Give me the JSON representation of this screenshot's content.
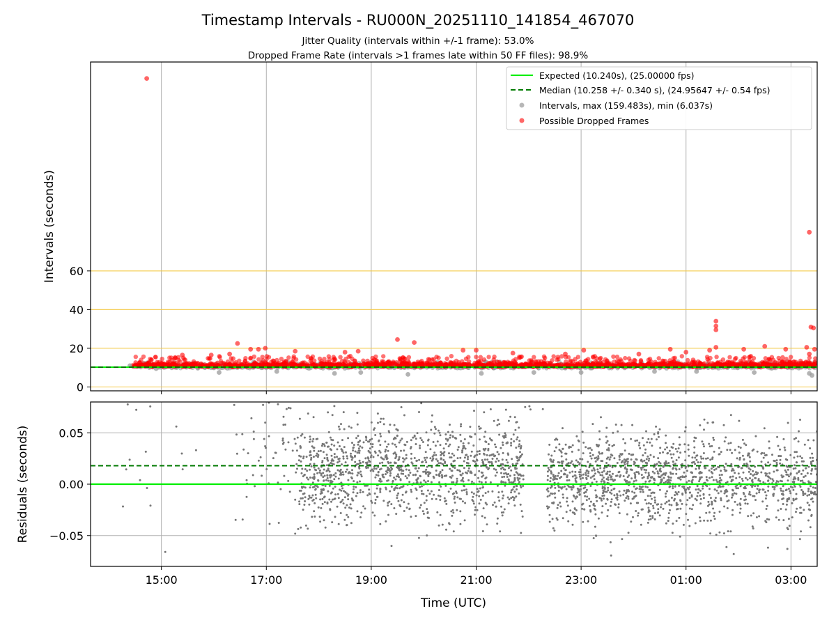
{
  "chart_data": [
    {
      "panel": "top",
      "type": "scatter",
      "title": "Timestamp Intervals - RU000N_20251110_141854_467070",
      "subtitle_1": "Jitter Quality (intervals within +/-1 frame): 53.0%",
      "subtitle_2": "Dropped Frame Rate (intervals >1 frames late within 50 FF files): 98.9%",
      "ylabel": "Intervals (seconds)",
      "ylim": [
        -2,
        168
      ],
      "yticks": [
        0,
        20,
        40,
        60
      ],
      "ytick_labels": [
        "0",
        "20",
        "40",
        "60"
      ],
      "reference_lines": [
        0,
        20,
        40,
        60
      ],
      "xlim_hours": [
        13.65,
        27.5
      ],
      "expected_interval": 10.24,
      "median_interval": 10.258,
      "legend_position": "upper right",
      "legend": [
        "Expected (10.240s), (25.00000 fps)",
        "Median (10.258 +/- 0.340 s), (24.95647 +/- 0.54 fps)",
        "Intervals, max (159.483s), min (6.037s)",
        "Possible Dropped Frames"
      ],
      "series": [
        {
          "name": "Possible Dropped Frames (notable)",
          "color": "#ff0000",
          "points": [
            {
              "t": 14.72,
              "y": 159.5
            },
            {
              "t": 27.35,
              "y": 80.0
            },
            {
              "t": 25.57,
              "y": 34.0
            },
            {
              "t": 25.57,
              "y": 31.5
            },
            {
              "t": 25.57,
              "y": 29.5
            },
            {
              "t": 25.57,
              "y": 20.5
            },
            {
              "t": 27.38,
              "y": 31.0
            },
            {
              "t": 27.43,
              "y": 30.5
            },
            {
              "t": 16.45,
              "y": 22.5
            },
            {
              "t": 19.5,
              "y": 24.5
            },
            {
              "t": 19.82,
              "y": 23.0
            },
            {
              "t": 16.7,
              "y": 19.5
            },
            {
              "t": 16.85,
              "y": 19.5
            },
            {
              "t": 16.98,
              "y": 20.0
            },
            {
              "t": 17.55,
              "y": 18.5
            },
            {
              "t": 18.5,
              "y": 18.0
            },
            {
              "t": 18.75,
              "y": 18.5
            },
            {
              "t": 20.75,
              "y": 19.0
            },
            {
              "t": 21.0,
              "y": 19.0
            },
            {
              "t": 23.05,
              "y": 19.0
            },
            {
              "t": 24.7,
              "y": 19.5
            },
            {
              "t": 25.45,
              "y": 19.0
            },
            {
              "t": 26.1,
              "y": 19.5
            },
            {
              "t": 26.5,
              "y": 21.0
            },
            {
              "t": 26.9,
              "y": 19.5
            },
            {
              "t": 27.3,
              "y": 20.5
            },
            {
              "t": 27.45,
              "y": 19.5
            },
            {
              "t": 27.35,
              "y": 17.0
            },
            {
              "t": 16.3,
              "y": 17.0
            },
            {
              "t": 15.4,
              "y": 16.5
            },
            {
              "t": 15.95,
              "y": 16.5
            },
            {
              "t": 21.7,
              "y": 17.5
            },
            {
              "t": 22.7,
              "y": 17.0
            },
            {
              "t": 24.1,
              "y": 17.0
            },
            {
              "t": 25.0,
              "y": 18.0
            }
          ]
        },
        {
          "name": "Intervals (notable low)",
          "color": "#999999",
          "points": [
            {
              "t": 14.4,
              "y": 11.0
            },
            {
              "t": 14.9,
              "y": 9.5
            },
            {
              "t": 16.1,
              "y": 7.5
            },
            {
              "t": 17.2,
              "y": 8.0
            },
            {
              "t": 18.3,
              "y": 7.0
            },
            {
              "t": 18.8,
              "y": 7.5
            },
            {
              "t": 19.7,
              "y": 6.5
            },
            {
              "t": 21.1,
              "y": 7.0
            },
            {
              "t": 22.1,
              "y": 7.5
            },
            {
              "t": 23.0,
              "y": 7.5
            },
            {
              "t": 24.4,
              "y": 8.0
            },
            {
              "t": 25.2,
              "y": 8.0
            },
            {
              "t": 26.3,
              "y": 7.5
            },
            {
              "t": 27.35,
              "y": 7.0
            },
            {
              "t": 27.4,
              "y": 6.0
            }
          ]
        }
      ],
      "bulk_band": "dense red and gray points between 14.5h and 27.5h at about 9-14 s"
    },
    {
      "panel": "bottom",
      "type": "scatter",
      "xlabel": "Time (UTC)",
      "ylabel": "Residuals (seconds)",
      "ylim": [
        -0.08,
        0.08
      ],
      "yticks": [
        -0.05,
        0.0,
        0.05
      ],
      "ytick_labels": [
        "−0.05",
        "0.00",
        "0.05"
      ],
      "xlim_hours": [
        13.65,
        27.5
      ],
      "xticks_hours": [
        15,
        17,
        19,
        21,
        23,
        25,
        27
      ],
      "xtick_labels": [
        "15:00",
        "17:00",
        "19:00",
        "21:00",
        "23:00",
        "01:00",
        "03:00"
      ],
      "expected_residual": 0.0,
      "median_residual": 0.018,
      "point_color": "#777777",
      "density_segments": [
        {
          "from": 14.2,
          "to": 14.9,
          "count": 10,
          "center": 0.02,
          "spread": 0.035
        },
        {
          "from": 15.0,
          "to": 16.4,
          "count": 10,
          "center": 0.05,
          "spread": 0.05
        },
        {
          "from": 16.4,
          "to": 17.55,
          "count": 60,
          "center": 0.03,
          "spread": 0.04
        },
        {
          "from": 17.55,
          "to": 21.9,
          "count": 1250,
          "center": 0.012,
          "spread": 0.024
        },
        {
          "from": 21.9,
          "to": 22.35,
          "count": 4,
          "center": 0.075,
          "spread": 0.004
        },
        {
          "from": 22.35,
          "to": 27.5,
          "count": 1450,
          "center": 0.005,
          "spread": 0.022
        }
      ]
    }
  ]
}
